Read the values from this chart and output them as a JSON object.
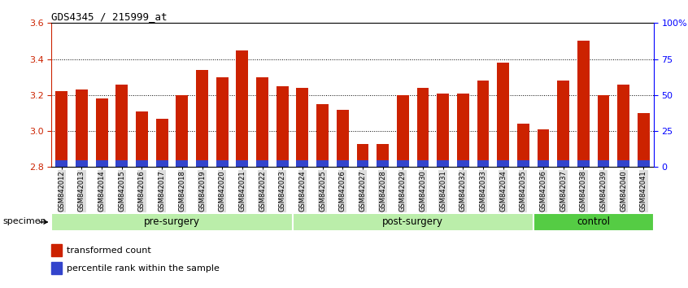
{
  "title": "GDS4345 / 215999_at",
  "samples": [
    "GSM842012",
    "GSM842013",
    "GSM842014",
    "GSM842015",
    "GSM842016",
    "GSM842017",
    "GSM842018",
    "GSM842019",
    "GSM842020",
    "GSM842021",
    "GSM842022",
    "GSM842023",
    "GSM842024",
    "GSM842025",
    "GSM842026",
    "GSM842027",
    "GSM842028",
    "GSM842029",
    "GSM842030",
    "GSM842031",
    "GSM842032",
    "GSM842033",
    "GSM842034",
    "GSM842035",
    "GSM842036",
    "GSM842037",
    "GSM842038",
    "GSM842039",
    "GSM842040",
    "GSM842041"
  ],
  "red_values": [
    3.22,
    3.23,
    3.18,
    3.26,
    3.11,
    3.07,
    3.2,
    3.34,
    3.3,
    3.45,
    3.3,
    3.25,
    3.24,
    3.15,
    3.12,
    2.93,
    2.93,
    3.2,
    3.24,
    3.21,
    3.21,
    3.28,
    3.38,
    3.04,
    3.01,
    3.28,
    3.5,
    3.2,
    3.26,
    3.1
  ],
  "blue_bar_height": 0.038,
  "ylim": [
    2.8,
    3.6
  ],
  "yticks_left": [
    2.8,
    3.0,
    3.2,
    3.4,
    3.6
  ],
  "right_pct": [
    0,
    25,
    50,
    75,
    100
  ],
  "right_pct_labels": [
    "0",
    "25",
    "50",
    "75",
    "100%"
  ],
  "bar_color_red": "#CC2200",
  "bar_color_blue": "#3344CC",
  "groups": [
    {
      "label": "pre-surgery",
      "start": 0,
      "end": 12,
      "color": "#BBEEAA"
    },
    {
      "label": "post-surgery",
      "start": 12,
      "end": 24,
      "color": "#BBEEAA"
    },
    {
      "label": "control",
      "start": 24,
      "end": 30,
      "color": "#55CC44"
    }
  ],
  "specimen_label": "specimen",
  "legend_red": "transformed count",
  "legend_blue": "percentile rank within the sample",
  "bar_width": 0.6,
  "base": 2.8,
  "tick_bg_color": "#DDDDDD"
}
